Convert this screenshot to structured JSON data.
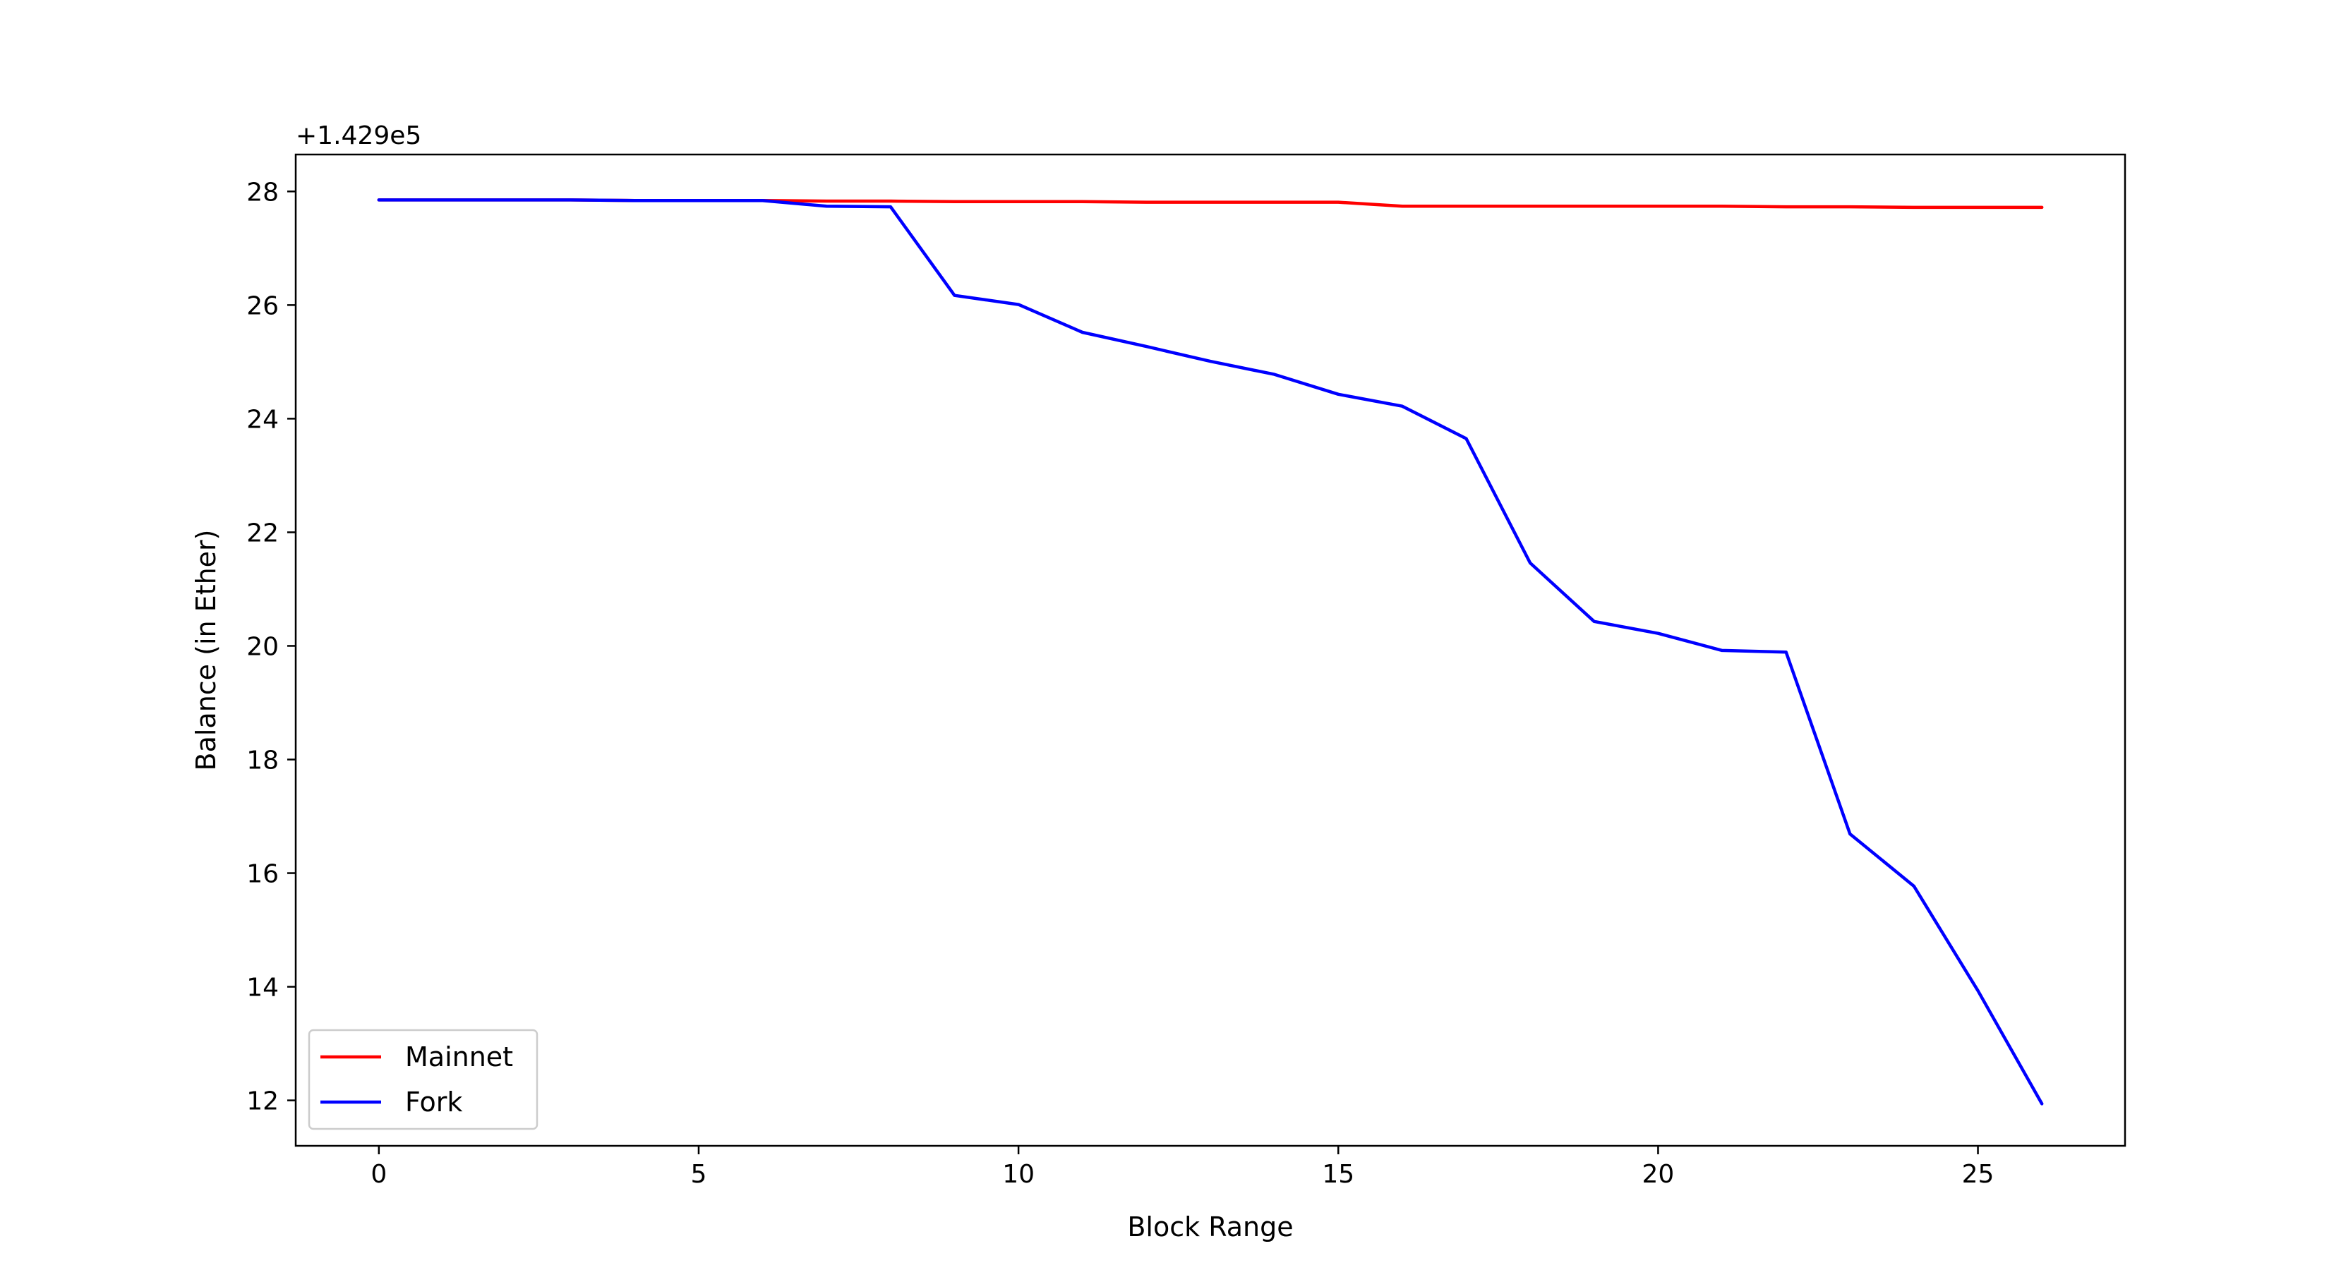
{
  "chart_data": {
    "type": "line",
    "xlabel": "Block Range",
    "ylabel": "Balance (in Ether)",
    "offset_label": "+1.429e5",
    "xlim": [
      -1.3,
      27.3
    ],
    "ylim": [
      11.2,
      28.65
    ],
    "xticks": [
      0,
      5,
      10,
      15,
      20,
      25
    ],
    "yticks": [
      12,
      14,
      16,
      18,
      20,
      22,
      24,
      26,
      28
    ],
    "grid": false,
    "legend_position": "lower-left",
    "series": [
      {
        "name": "Mainnet",
        "color": "#ff0000",
        "x": [
          0,
          1,
          2,
          3,
          4,
          5,
          6,
          7,
          8,
          9,
          10,
          11,
          12,
          13,
          14,
          15,
          16,
          17,
          18,
          19,
          20,
          21,
          22,
          23,
          24,
          25,
          26
        ],
        "values": [
          27.85,
          27.85,
          27.85,
          27.85,
          27.84,
          27.84,
          27.84,
          27.83,
          27.83,
          27.82,
          27.82,
          27.82,
          27.81,
          27.81,
          27.81,
          27.81,
          27.74,
          27.74,
          27.74,
          27.74,
          27.74,
          27.74,
          27.73,
          27.73,
          27.72,
          27.72,
          27.72
        ]
      },
      {
        "name": "Fork",
        "color": "#0000ff",
        "x": [
          0,
          1,
          2,
          3,
          4,
          5,
          6,
          7,
          8,
          9,
          10,
          11,
          12,
          13,
          14,
          15,
          16,
          17,
          18,
          19,
          20,
          21,
          22,
          23,
          24,
          25,
          26
        ],
        "values": [
          27.85,
          27.85,
          27.85,
          27.85,
          27.84,
          27.84,
          27.84,
          27.74,
          27.73,
          26.17,
          26.01,
          25.52,
          25.27,
          25.01,
          24.78,
          24.43,
          24.22,
          23.65,
          21.46,
          20.43,
          20.22,
          19.92,
          19.89,
          16.69,
          15.77,
          13.93,
          11.94
        ]
      }
    ]
  }
}
